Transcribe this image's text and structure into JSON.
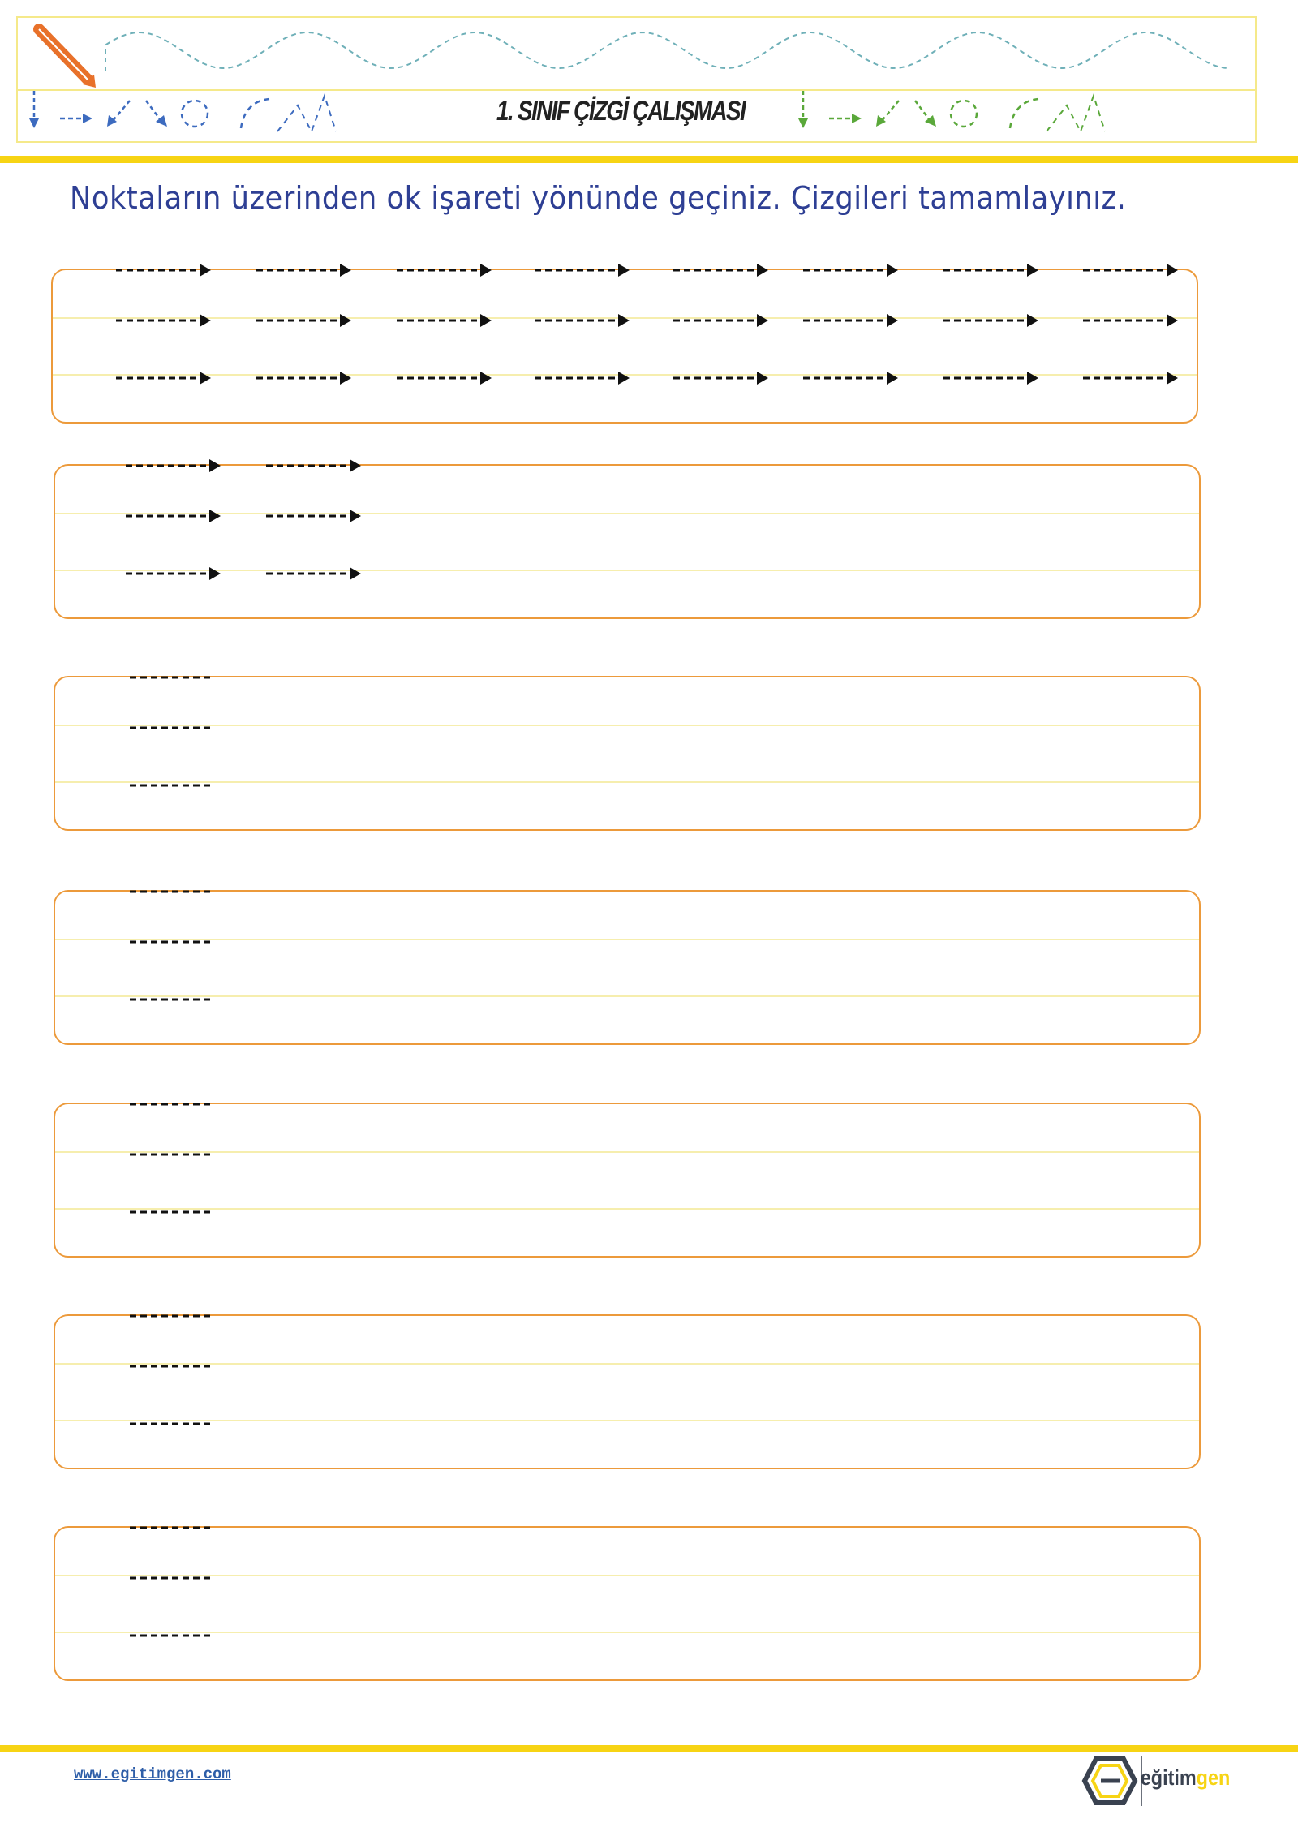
{
  "header": {
    "title": "1. SINIF ÇİZGİ ÇALIŞMASI",
    "icons": [
      "pencil-icon",
      "wavy-dashed-line",
      "dashed-arrow-down",
      "dashed-arrow-right",
      "dashed-arrows-diagonal",
      "dashed-circle",
      "dashed-curve",
      "dashed-zigzag"
    ],
    "colors": {
      "left_group": "#3d6bbf",
      "right_group": "#5aa83a",
      "wave": "#6fb0b8",
      "pencil": "#e8712a"
    }
  },
  "instruction": "Noktaların üzerinden ok işareti yönünde geçiniz. Çizgileri tamamlayınız.",
  "exercises": [
    {
      "columns": 8,
      "arrows": true
    },
    {
      "columns": 2,
      "arrows": true
    },
    {
      "columns": 1,
      "arrows": false
    },
    {
      "columns": 1,
      "arrows": false
    },
    {
      "columns": 1,
      "arrows": false
    },
    {
      "columns": 1,
      "arrows": false
    },
    {
      "columns": 1,
      "arrows": false
    }
  ],
  "footer": {
    "url": "www.egitimgen.com",
    "logo_text": "eğitimgen"
  },
  "colors": {
    "box_border": "#ec9a3b",
    "guide_line": "#f6eeae",
    "accent_bar": "#f7d414",
    "instruction": "#2e3f94"
  }
}
